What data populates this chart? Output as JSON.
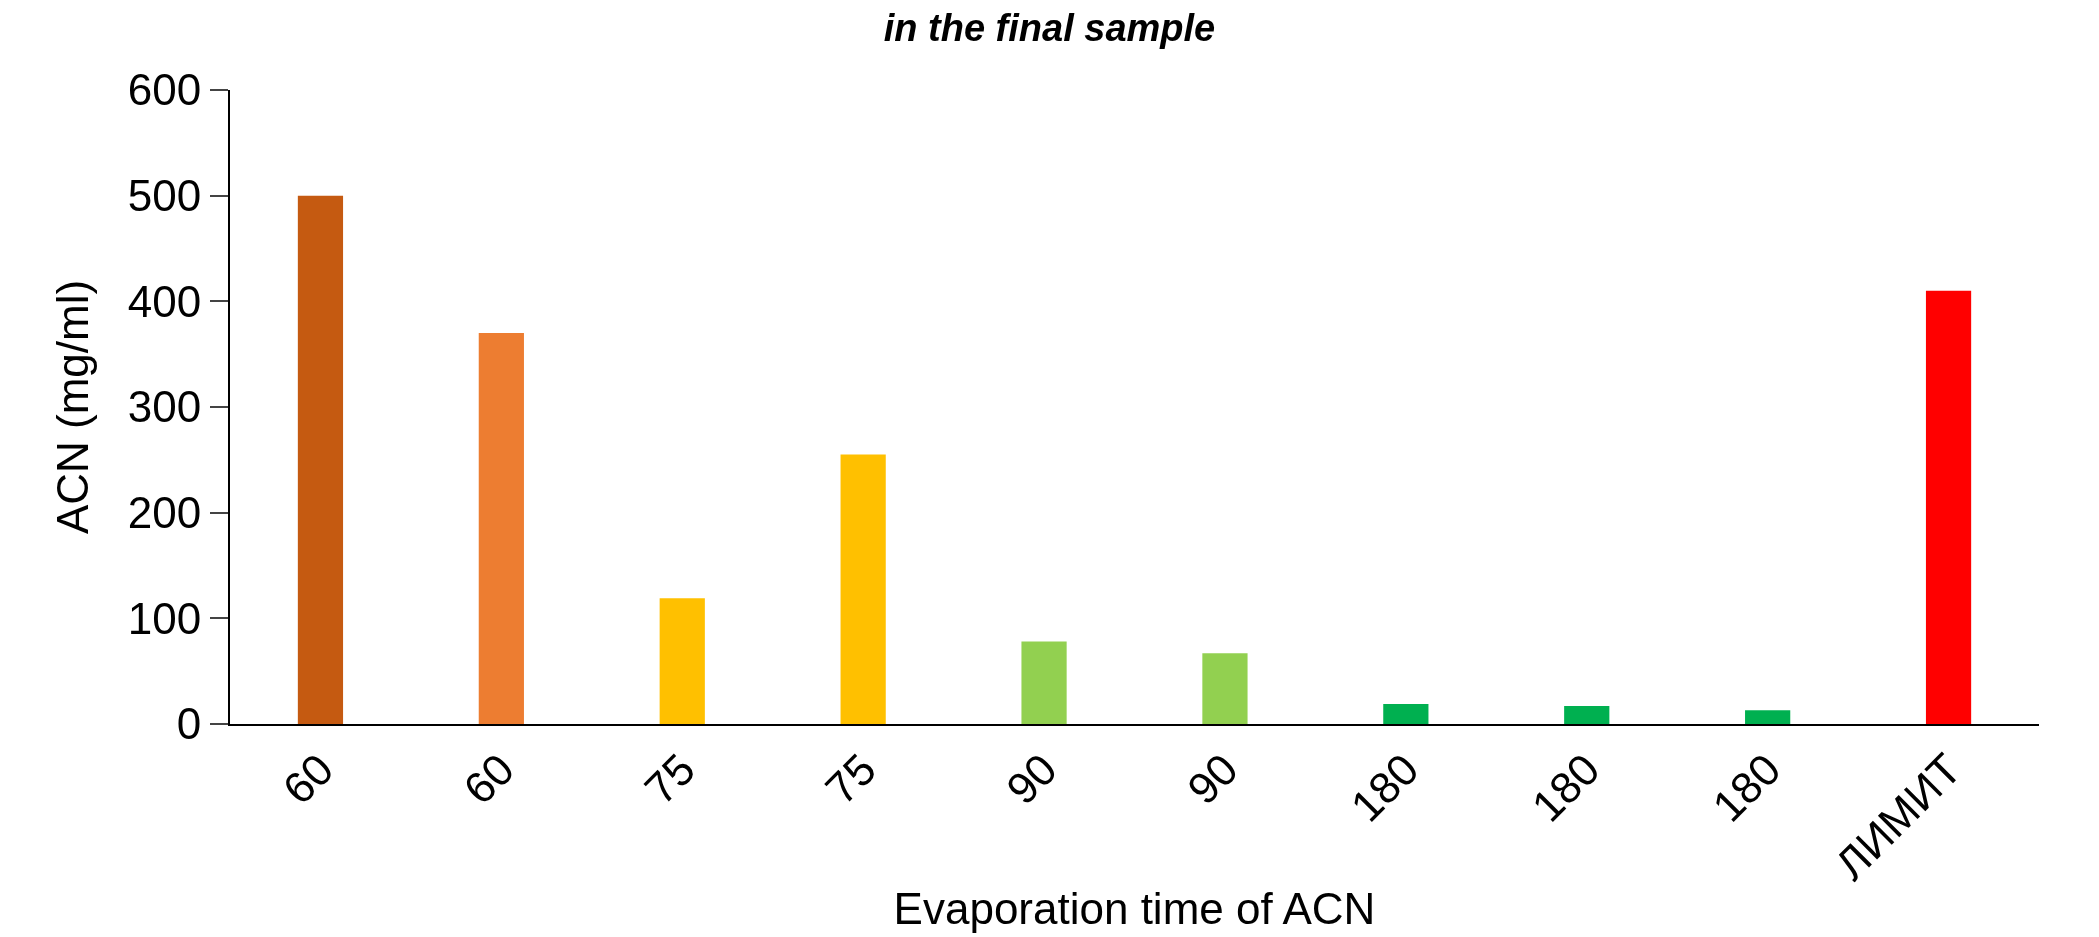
{
  "chart_data": {
    "type": "bar",
    "title": "in the final sample",
    "xlabel": "Evaporation time of ACN",
    "ylabel": "ACN (mg/ml)",
    "categories": [
      "60",
      "60",
      "75",
      "75",
      "90",
      "90",
      "180",
      "180",
      "180",
      "ЛИМИТ"
    ],
    "values": [
      500,
      370,
      119,
      255,
      78,
      67,
      19,
      17,
      13,
      410
    ],
    "colors": [
      "#c55a11",
      "#ed7d31",
      "#ffc000",
      "#ffc000",
      "#92d050",
      "#92d050",
      "#00b050",
      "#00b050",
      "#00b050",
      "#ff0000"
    ],
    "ylim": [
      0,
      600
    ],
    "yticks": [
      0,
      100,
      200,
      300,
      400,
      500,
      600
    ]
  }
}
